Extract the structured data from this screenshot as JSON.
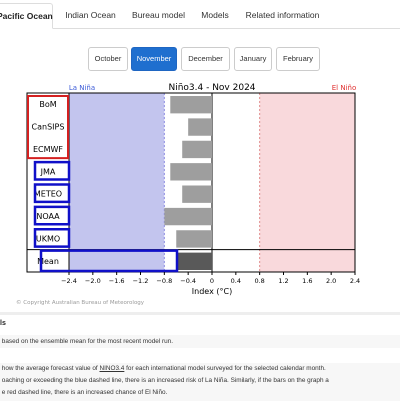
{
  "tabs": [
    {
      "label": "Pacific Ocean",
      "active": true
    },
    {
      "label": "Indian Ocean",
      "active": false
    },
    {
      "label": "Bureau model",
      "active": false
    },
    {
      "label": "Models",
      "active": false
    },
    {
      "label": "Related information",
      "active": false
    }
  ],
  "months": [
    {
      "label": "October",
      "active": false
    },
    {
      "label": "November",
      "active": true
    },
    {
      "label": "December",
      "active": false
    },
    {
      "label": "January",
      "active": false
    },
    {
      "label": "February",
      "active": false
    }
  ],
  "chart_data": {
    "type": "bar",
    "title": "Niño3.4 - Nov 2024",
    "xlabel": "Index (°C)",
    "xlim": [
      -2.4,
      2.4
    ],
    "xticks": [
      "−2.4",
      "−2.0",
      "−1.6",
      "−1.2",
      "−0.8",
      "−0.4",
      "0",
      "0.4",
      "0.8",
      "1.2",
      "1.6",
      "2.0",
      "2.4"
    ],
    "xtick_values": [
      -2.4,
      -2.0,
      -1.6,
      -1.2,
      -0.8,
      -0.4,
      0,
      0.4,
      0.8,
      1.2,
      1.6,
      2.0,
      2.4
    ],
    "la_nina_label": "La Niña",
    "el_nino_label": "El Niño",
    "la_nina_threshold": -0.8,
    "el_nino_threshold": 0.8,
    "categories": [
      "BoM",
      "CanSIPS",
      "ECMWF",
      "JMA",
      "METEO",
      "NOAA",
      "UKMO",
      "Mean"
    ],
    "values": [
      -0.7,
      -0.4,
      -0.5,
      -0.7,
      -0.5,
      -0.8,
      -0.6,
      -0.6
    ],
    "grid": false,
    "copyright": "© Copyright Australian Bureau of Meteorology",
    "colors": {
      "bar": "#9e9e9e",
      "mean_bar": "#595959",
      "la_nina_shade": "#c3c5ee",
      "el_nino_shade": "#f9d9dc",
      "la_nina_text": "#3d5cd8",
      "el_nino_text": "#e03030",
      "red_box": "#d42020",
      "blue_box": "#1010c8"
    }
  },
  "info": {
    "section_label": "ls",
    "line1": "based on the ensemble mean for the most recent model run.",
    "line2_pre": "how the average forecast value of ",
    "line2_link": "NINO3.4",
    "line2_post": " for each international model surveyed for the selected calendar month.",
    "line3": "oaching or exceeding the blue dashed line, there is an increased risk of La Niña. Similarly, if the bars on the graph a",
    "line4": "e red dashed line, there is an increased chance of El Niño."
  }
}
